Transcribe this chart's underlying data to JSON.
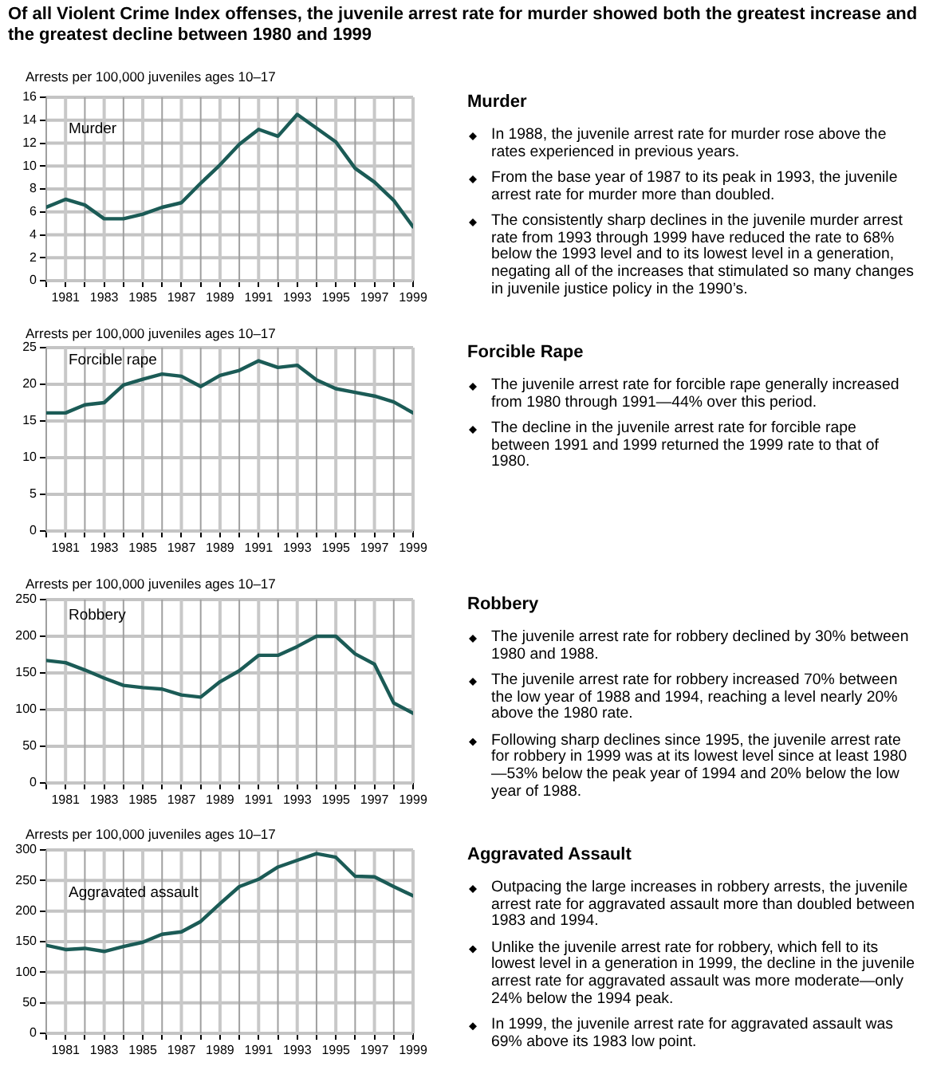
{
  "chart_data": [
    {
      "type": "line",
      "title": "Of all Violent Crime Index offenses, the juvenile arrest rate for murder showed both the greatest increase and the greatest decline between 1980 and 1999",
      "ylabel": "Arrests per 100,000 juveniles ages 10–17",
      "x": [
        1980,
        1981,
        1982,
        1983,
        1984,
        1985,
        1986,
        1987,
        1988,
        1989,
        1990,
        1991,
        1992,
        1993,
        1994,
        1995,
        1996,
        1997,
        1998,
        1999
      ],
      "xlim": [
        1980,
        1999
      ],
      "xticks": [
        {
          "value": 1980,
          "label": null
        },
        1981,
        {
          "value": 1982,
          "label": null
        },
        1983,
        {
          "value": 1984,
          "label": null
        },
        1985,
        {
          "value": 1986,
          "label": null
        },
        1987,
        {
          "value": 1988,
          "label": null
        },
        1989,
        {
          "value": 1990,
          "label": null
        },
        1991,
        {
          "value": 1992,
          "label": null
        },
        1993,
        {
          "value": 1994,
          "label": null
        },
        1995,
        {
          "value": 1996,
          "label": null
        },
        1997,
        {
          "value": 1998,
          "label": null
        },
        1999
      ],
      "ylim": [
        0,
        16
      ],
      "yticks": [
        0,
        2,
        4,
        6,
        8,
        10,
        12,
        14,
        16
      ],
      "grid": true,
      "series": [
        {
          "name": "Murder",
          "color": "#1b5b56",
          "values": [
            6.4,
            7.1,
            6.6,
            5.4,
            5.4,
            5.8,
            6.4,
            6.8,
            8.5,
            10.1,
            11.9,
            13.2,
            12.6,
            14.5,
            13.3,
            12.1,
            9.8,
            8.6,
            7.0,
            4.7
          ]
        }
      ],
      "annotations": [
        "Murder",
        "In 1988, the juvenile arrest rate for murder rose above the rates experienced in previous years.",
        "From the base year of 1987 to its peak in 1993, the juvenile arrest rate for murder more than doubled.",
        "The consistently sharp declines in the juvenile murder arrest rate from 1993 through 1999 have reduced the rate to 68% below the 1993 level and to its lowest level in a generation, negating all of the increases that stimulated so many changes in juvenile justice policy in the 1990’s."
      ]
    },
    {
      "type": "line",
      "ylabel": "Arrests per 100,000 juveniles ages 10–17",
      "x": [
        1980,
        1981,
        1982,
        1983,
        1984,
        1985,
        1986,
        1987,
        1988,
        1989,
        1990,
        1991,
        1992,
        1993,
        1994,
        1995,
        1996,
        1997,
        1998,
        1999
      ],
      "xlim": [
        1980,
        1999
      ],
      "xticks": [
        {
          "value": 1980,
          "label": null
        },
        1981,
        {
          "value": 1982,
          "label": null
        },
        1983,
        {
          "value": 1984,
          "label": null
        },
        1985,
        {
          "value": 1986,
          "label": null
        },
        1987,
        {
          "value": 1988,
          "label": null
        },
        1989,
        {
          "value": 1990,
          "label": null
        },
        1991,
        {
          "value": 1992,
          "label": null
        },
        1993,
        {
          "value": 1994,
          "label": null
        },
        1995,
        {
          "value": 1996,
          "label": null
        },
        1997,
        {
          "value": 1998,
          "label": null
        },
        1999
      ],
      "ylim": [
        0,
        25
      ],
      "yticks": [
        0,
        5,
        10,
        15,
        20,
        25
      ],
      "grid": true,
      "series": [
        {
          "name": "Forcible rape",
          "color": "#1b5b56",
          "values": [
            16.1,
            16.1,
            17.2,
            17.5,
            19.9,
            20.7,
            21.4,
            21.1,
            19.7,
            21.2,
            21.9,
            23.2,
            22.3,
            22.6,
            20.6,
            19.4,
            18.9,
            18.4,
            17.6,
            16.1
          ]
        }
      ],
      "annotations": [
        "Forcible Rape",
        "The juvenile arrest rate for forcible rape generally increased from 1980 through 1991—44% over this period.",
        "The decline in the juvenile arrest rate for forcible rape between 1991 and 1999 returned the 1999 rate to that of 1980."
      ]
    },
    {
      "type": "line",
      "ylabel": "Arrests per 100,000 juveniles ages 10–17",
      "x": [
        1980,
        1981,
        1982,
        1983,
        1984,
        1985,
        1986,
        1987,
        1988,
        1989,
        1990,
        1991,
        1992,
        1993,
        1994,
        1995,
        1996,
        1997,
        1998,
        1999
      ],
      "xlim": [
        1980,
        1999
      ],
      "xticks": [
        {
          "value": 1980,
          "label": null
        },
        1981,
        {
          "value": 1982,
          "label": null
        },
        1983,
        {
          "value": 1984,
          "label": null
        },
        1985,
        {
          "value": 1986,
          "label": null
        },
        1987,
        {
          "value": 1988,
          "label": null
        },
        1989,
        {
          "value": 1990,
          "label": null
        },
        1991,
        {
          "value": 1992,
          "label": null
        },
        1993,
        {
          "value": 1994,
          "label": null
        },
        1995,
        {
          "value": 1996,
          "label": null
        },
        1997,
        {
          "value": 1998,
          "label": null
        },
        1999
      ],
      "ylim": [
        0,
        250
      ],
      "yticks": [
        0,
        50,
        100,
        150,
        200,
        250
      ],
      "grid": true,
      "series": [
        {
          "name": "Robbery",
          "color": "#1b5b56",
          "values": [
            167,
            164,
            154,
            143,
            133,
            130,
            128,
            120,
            117,
            138,
            153,
            174,
            174,
            186,
            200,
            200,
            176,
            162,
            109,
            95
          ]
        }
      ],
      "annotations": [
        "Robbery",
        "The juvenile arrest rate for robbery declined by 30% between 1980 and 1988.",
        "The juvenile arrest rate for robbery increased 70% between the low year of 1988 and 1994, reaching a level nearly 20% above the 1980 rate.",
        "Following sharp declines since 1995, the juvenile arrest rate for robbery in 1999 was at its lowest level since at least 1980—53% below the peak year of 1994 and 20% below the low year of 1988."
      ]
    },
    {
      "type": "line",
      "ylabel": "Arrests per 100,000 juveniles ages 10–17",
      "x": [
        1980,
        1981,
        1982,
        1983,
        1984,
        1985,
        1986,
        1987,
        1988,
        1989,
        1990,
        1991,
        1992,
        1993,
        1994,
        1995,
        1996,
        1997,
        1998,
        1999
      ],
      "xlim": [
        1980,
        1999
      ],
      "xticks": [
        {
          "value": 1980,
          "label": null
        },
        1981,
        {
          "value": 1982,
          "label": null
        },
        1983,
        {
          "value": 1984,
          "label": null
        },
        1985,
        {
          "value": 1986,
          "label": null
        },
        1987,
        {
          "value": 1988,
          "label": null
        },
        1989,
        {
          "value": 1990,
          "label": null
        },
        1991,
        {
          "value": 1992,
          "label": null
        },
        1993,
        {
          "value": 1994,
          "label": null
        },
        1995,
        {
          "value": 1996,
          "label": null
        },
        1997,
        {
          "value": 1998,
          "label": null
        },
        1999
      ],
      "ylim": [
        0,
        300
      ],
      "yticks": [
        0,
        50,
        100,
        150,
        200,
        250,
        300
      ],
      "grid": true,
      "series": [
        {
          "name": "Aggravated assault",
          "color": "#1b5b56",
          "values": [
            144,
            137,
            139,
            134,
            142,
            149,
            162,
            166,
            183,
            212,
            240,
            252,
            272,
            283,
            294,
            288,
            257,
            256,
            240,
            225
          ]
        }
      ],
      "annotations": [
        "Aggravated Assault",
        "Outpacing the large increases in robbery arrests, the juvenile arrest rate for aggravated assault more than doubled between 1983 and 1994.",
        "Unlike the juvenile arrest rate for robbery, which fell to its lowest level in a generation in 1999, the decline in the juvenile arrest rate for aggravated assault was more moderate—only 24% below the 1994 peak.",
        "In 1999, the juvenile arrest rate for aggravated assault was 69% above its 1983 low point."
      ]
    }
  ]
}
